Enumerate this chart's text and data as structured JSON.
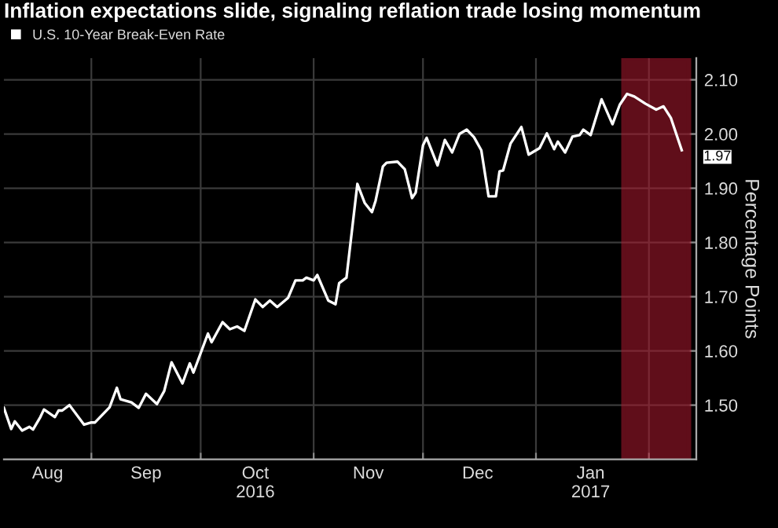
{
  "chart_data": {
    "type": "line",
    "title": "Inflation expectations slide, signaling reflation trade losing momentum",
    "ylabel": "Percentage Points",
    "x": [
      "2016-08-08",
      "2016-08-10",
      "2016-08-11",
      "2016-08-13",
      "2016-08-15",
      "2016-08-16",
      "2016-08-18",
      "2016-08-19",
      "2016-08-22",
      "2016-08-23",
      "2016-08-24",
      "2016-08-26",
      "2016-08-30",
      "2016-09-01",
      "2016-09-02",
      "2016-09-06",
      "2016-09-08",
      "2016-09-09",
      "2016-09-12",
      "2016-09-14",
      "2016-09-16",
      "2016-09-19",
      "2016-09-21",
      "2016-09-23",
      "2016-09-26",
      "2016-09-28",
      "2016-09-29",
      "2016-10-03",
      "2016-10-04",
      "2016-10-07",
      "2016-10-09",
      "2016-10-11",
      "2016-10-13",
      "2016-10-16",
      "2016-10-18",
      "2016-10-20",
      "2016-10-22",
      "2016-10-25",
      "2016-10-27",
      "2016-10-29",
      "2016-10-30",
      "2016-11-01",
      "2016-11-02",
      "2016-11-05",
      "2016-11-07",
      "2016-11-08",
      "2016-11-10",
      "2016-11-13",
      "2016-11-15",
      "2016-11-17",
      "2016-11-18",
      "2016-11-20",
      "2016-11-21",
      "2016-11-24",
      "2016-11-26",
      "2016-11-28",
      "2016-11-29",
      "2016-12-01",
      "2016-12-02",
      "2016-12-05",
      "2016-12-07",
      "2016-12-09",
      "2016-12-11",
      "2016-12-13",
      "2016-12-15",
      "2016-12-17",
      "2016-12-19",
      "2016-12-21",
      "2016-12-22",
      "2016-12-23",
      "2016-12-25",
      "2016-12-28",
      "2016-12-30",
      "2017-01-02",
      "2017-01-04",
      "2017-01-06",
      "2017-01-07",
      "2017-01-09",
      "2017-01-11",
      "2017-01-13",
      "2017-01-14",
      "2017-01-16",
      "2017-01-19",
      "2017-01-22",
      "2017-01-24",
      "2017-01-26",
      "2017-01-28",
      "2017-01-31",
      "2017-02-03",
      "2017-02-05",
      "2017-02-07",
      "2017-02-10"
    ],
    "series": [
      {
        "name": "U.S. 10-Year Break-Even Rate",
        "color": "#ffffff",
        "values": [
          1.495,
          1.456,
          1.47,
          1.453,
          1.46,
          1.455,
          1.478,
          1.492,
          1.478,
          1.49,
          1.49,
          1.5,
          1.464,
          1.468,
          1.468,
          1.496,
          1.532,
          1.511,
          1.505,
          1.495,
          1.521,
          1.502,
          1.526,
          1.579,
          1.54,
          1.577,
          1.56,
          1.632,
          1.616,
          1.653,
          1.64,
          1.645,
          1.637,
          1.695,
          1.681,
          1.693,
          1.681,
          1.698,
          1.73,
          1.73,
          1.735,
          1.73,
          1.74,
          1.693,
          1.686,
          1.725,
          1.735,
          1.908,
          1.873,
          1.856,
          1.877,
          1.94,
          1.947,
          1.949,
          1.935,
          1.882,
          1.892,
          1.979,
          1.993,
          1.942,
          1.989,
          1.966,
          2.0,
          2.008,
          1.994,
          1.97,
          1.885,
          1.885,
          1.931,
          1.933,
          1.982,
          2.013,
          1.962,
          1.974,
          2.001,
          1.972,
          1.986,
          1.966,
          1.995,
          1.998,
          2.008,
          1.998,
          2.064,
          2.018,
          2.054,
          2.074,
          2.069,
          2.056,
          2.045,
          2.051,
          2.03,
          1.97
        ],
        "value_labels": [
          null,
          null,
          null,
          null,
          null,
          null,
          null,
          null,
          null,
          null,
          null,
          null,
          null,
          null,
          null,
          null,
          null,
          null,
          null,
          null,
          null,
          null,
          null,
          null,
          null,
          null,
          null,
          null,
          null,
          null,
          null,
          null,
          null,
          null,
          null,
          null,
          null,
          null,
          null,
          null,
          null,
          null,
          null,
          null,
          null,
          null,
          null,
          null,
          null,
          null,
          null,
          null,
          null,
          null,
          null,
          null,
          null,
          null,
          null,
          null,
          null,
          null,
          null,
          null,
          null,
          null,
          null,
          null,
          null,
          null,
          null,
          null,
          null,
          null,
          null,
          null,
          null,
          null,
          null,
          null,
          null,
          null,
          null,
          null,
          null,
          null,
          null,
          null,
          null,
          null,
          null,
          "1.97"
        ]
      }
    ],
    "xlim": [
      "2016-08-08",
      "2017-02-14"
    ],
    "xticks": [
      {
        "value": "2016-08-20",
        "label": "Aug"
      },
      {
        "value": "2016-09-01",
        "label": null
      },
      {
        "value": "2016-09-16",
        "label": "Sep"
      },
      {
        "value": "2016-10-01",
        "label": null
      },
      {
        "value": "2016-10-16",
        "label": "Oct\n2016"
      },
      {
        "value": "2016-11-01",
        "label": null
      },
      {
        "value": "2016-11-16",
        "label": "Nov"
      },
      {
        "value": "2016-12-01",
        "label": null
      },
      {
        "value": "2016-12-16",
        "label": "Dec"
      },
      {
        "value": "2017-01-01",
        "label": null
      },
      {
        "value": "2017-01-16",
        "label": "Jan\n2017"
      },
      {
        "value": "2017-02-01",
        "label": null
      }
    ],
    "ylim": [
      1.4,
      2.14
    ],
    "yticks": [
      {
        "value": 1.5,
        "label": "1.50"
      },
      {
        "value": 1.6,
        "label": "1.60"
      },
      {
        "value": 1.7,
        "label": "1.70"
      },
      {
        "value": 1.8,
        "label": "1.80"
      },
      {
        "value": 1.9,
        "label": "1.90"
      },
      {
        "value": 2.0,
        "label": "2.00"
      },
      {
        "value": 2.1,
        "label": "2.10"
      }
    ],
    "bands": [
      {
        "axis": "x",
        "from": "2017-01-25",
        "to": "2017-02-12",
        "color": "#b01a30"
      }
    ],
    "grid": true,
    "legend": "top left",
    "marker": "none",
    "line_style": "solid"
  }
}
